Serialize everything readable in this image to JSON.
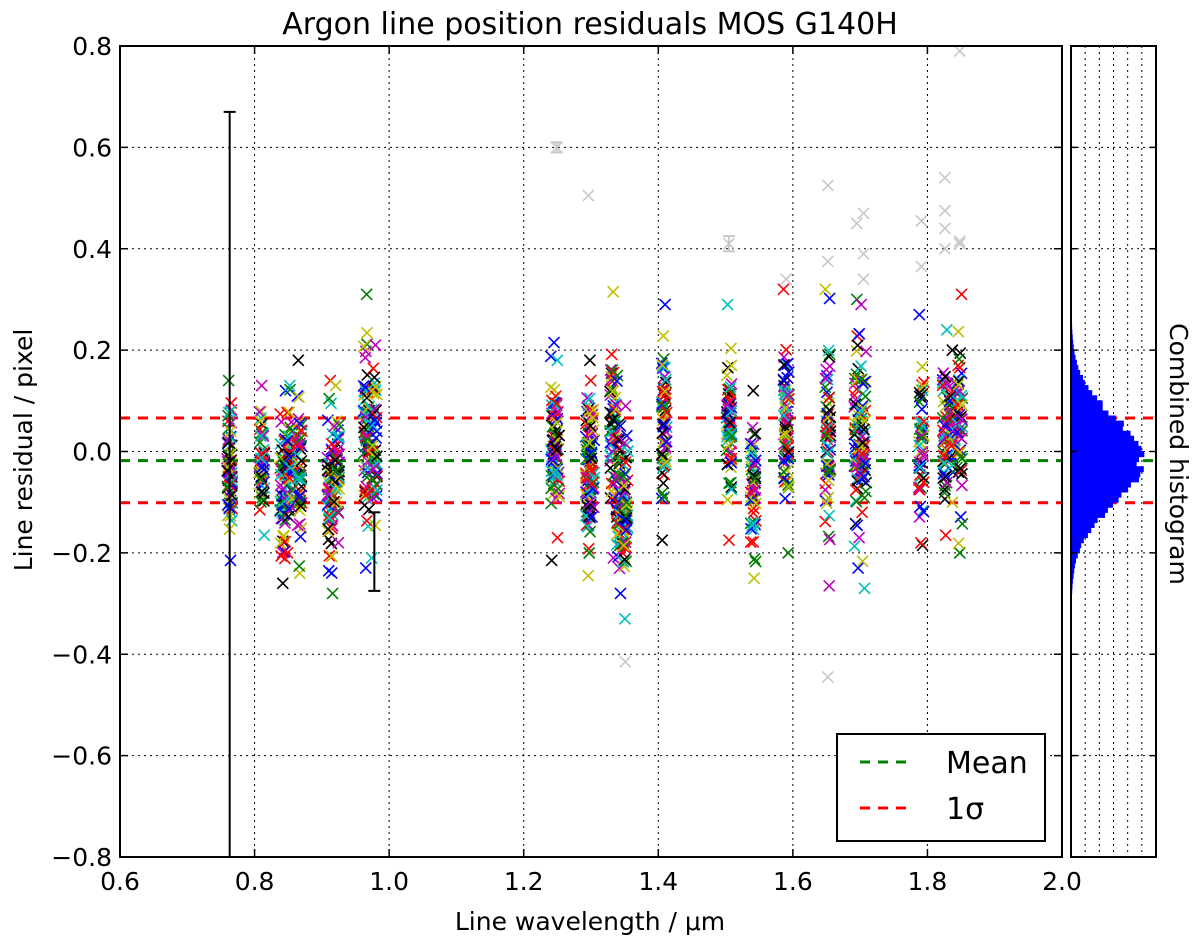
{
  "chart_data": {
    "type": "scatter",
    "title": "Argon line position residuals MOS G140H",
    "xlabel": "Line wavelength / μm",
    "ylabel": "Line residual / pixel",
    "xlim": [
      0.6,
      2.0
    ],
    "ylim": [
      -0.8,
      0.8
    ],
    "x_ticks": [
      0.6,
      0.8,
      1.0,
      1.2,
      1.4,
      1.6,
      1.8,
      2.0
    ],
    "x_tick_labels": [
      "0.6",
      "0.8",
      "1.0",
      "1.2",
      "1.4",
      "1.6",
      "1.8",
      "2.0"
    ],
    "y_ticks": [
      -0.8,
      -0.6,
      -0.4,
      -0.2,
      0.0,
      0.2,
      0.4,
      0.6,
      0.8
    ],
    "y_tick_labels": [
      "−0.8",
      "−0.6",
      "−0.4",
      "−0.2",
      "0.0",
      "0.2",
      "0.4",
      "0.6",
      "0.8"
    ],
    "grid": true,
    "marker": "x",
    "series_colors": [
      "#0000ff",
      "#008000",
      "#ff0000",
      "#00bfbf",
      "#bf00bf",
      "#bfbf00",
      "#000000"
    ],
    "outlier_color": "#c8c8c8",
    "mean": -0.018,
    "sigma_upper": 0.066,
    "sigma_lower": -0.101,
    "line_groups": [
      {
        "x": 0.763,
        "min": -0.215,
        "max": 0.14,
        "n": 70
      },
      {
        "x": 0.811,
        "min": -0.165,
        "max": 0.13,
        "n": 50
      },
      {
        "x": 0.842,
        "min": -0.26,
        "max": 0.12,
        "n": 60
      },
      {
        "x": 0.852,
        "min": -0.2,
        "max": 0.13,
        "n": 55
      },
      {
        "x": 0.867,
        "min": -0.24,
        "max": 0.18,
        "n": 55
      },
      {
        "x": 0.912,
        "min": -0.28,
        "max": 0.14,
        "n": 60
      },
      {
        "x": 0.922,
        "min": -0.18,
        "max": 0.13,
        "n": 45
      },
      {
        "x": 0.966,
        "min": -0.23,
        "max": 0.31,
        "n": 70
      },
      {
        "x": 0.978,
        "min": -0.21,
        "max": 0.21,
        "n": 50
      },
      {
        "x": 1.244,
        "min": -0.215,
        "max": 0.215,
        "n": 60
      },
      {
        "x": 1.249,
        "min": -0.17,
        "max": 0.18,
        "n": 40
      },
      {
        "x": 1.296,
        "min": -0.245,
        "max": 0.18,
        "n": 65
      },
      {
        "x": 1.301,
        "min": -0.2,
        "max": 0.14,
        "n": 40
      },
      {
        "x": 1.332,
        "min": -0.21,
        "max": 0.315,
        "n": 55
      },
      {
        "x": 1.341,
        "min": -0.28,
        "max": 0.15,
        "n": 50
      },
      {
        "x": 1.351,
        "min": -0.33,
        "max": 0.09,
        "n": 55
      },
      {
        "x": 1.409,
        "min": -0.175,
        "max": 0.29,
        "n": 65
      },
      {
        "x": 1.505,
        "min": -0.175,
        "max": 0.29,
        "n": 65
      },
      {
        "x": 1.541,
        "min": -0.25,
        "max": 0.12,
        "n": 55
      },
      {
        "x": 1.59,
        "min": -0.2,
        "max": 0.32,
        "n": 70
      },
      {
        "x": 1.652,
        "min": -0.265,
        "max": 0.32,
        "n": 70
      },
      {
        "x": 1.695,
        "min": -0.23,
        "max": 0.3,
        "n": 65
      },
      {
        "x": 1.705,
        "min": -0.27,
        "max": 0.29,
        "n": 55
      },
      {
        "x": 1.791,
        "min": -0.185,
        "max": 0.27,
        "n": 55
      },
      {
        "x": 1.826,
        "min": -0.165,
        "max": 0.24,
        "n": 50
      },
      {
        "x": 1.837,
        "min": -0.1,
        "max": 0.2,
        "n": 35
      },
      {
        "x": 1.848,
        "min": -0.2,
        "max": 0.31,
        "n": 55
      }
    ],
    "outlier_points": [
      {
        "x": 1.249,
        "y": 0.6
      },
      {
        "x": 1.296,
        "y": 0.505
      },
      {
        "x": 1.351,
        "y": -0.415
      },
      {
        "x": 1.505,
        "y": 0.41
      },
      {
        "x": 1.59,
        "y": 0.34
      },
      {
        "x": 1.652,
        "y": 0.525
      },
      {
        "x": 1.652,
        "y": 0.375
      },
      {
        "x": 1.652,
        "y": -0.445
      },
      {
        "x": 1.695,
        "y": 0.45
      },
      {
        "x": 1.705,
        "y": 0.47
      },
      {
        "x": 1.705,
        "y": 0.39
      },
      {
        "x": 1.705,
        "y": 0.34
      },
      {
        "x": 1.791,
        "y": 0.455
      },
      {
        "x": 1.791,
        "y": 0.365
      },
      {
        "x": 1.826,
        "y": 0.54
      },
      {
        "x": 1.826,
        "y": 0.475
      },
      {
        "x": 1.826,
        "y": 0.44
      },
      {
        "x": 1.826,
        "y": 0.4
      },
      {
        "x": 1.848,
        "y": 0.79
      },
      {
        "x": 1.848,
        "y": 0.415
      },
      {
        "x": 1.848,
        "y": 0.41
      }
    ],
    "error_bars": [
      {
        "x": 0.763,
        "y": 0.0,
        "lower": -0.8,
        "upper": 0.67
      },
      {
        "x": 0.978,
        "y": -0.2,
        "lower": -0.275,
        "upper": -0.12
      },
      {
        "x": 1.249,
        "y": 0.6,
        "lower": 0.59,
        "upper": 0.61
      },
      {
        "x": 1.505,
        "y": 0.41,
        "lower": 0.395,
        "upper": 0.425
      }
    ],
    "legend": {
      "location": "lower-right",
      "entries": [
        {
          "label": "Mean",
          "color": "#008000",
          "style": "dashed"
        },
        {
          "label": "1σ",
          "color": "#ff0000",
          "style": "dashed"
        }
      ]
    },
    "histogram": {
      "label": "Combined histogram",
      "color": "#0000ff",
      "mean": -0.018,
      "std": 0.085,
      "bin_width": 0.01,
      "range": [
        -0.28,
        0.32
      ]
    }
  }
}
